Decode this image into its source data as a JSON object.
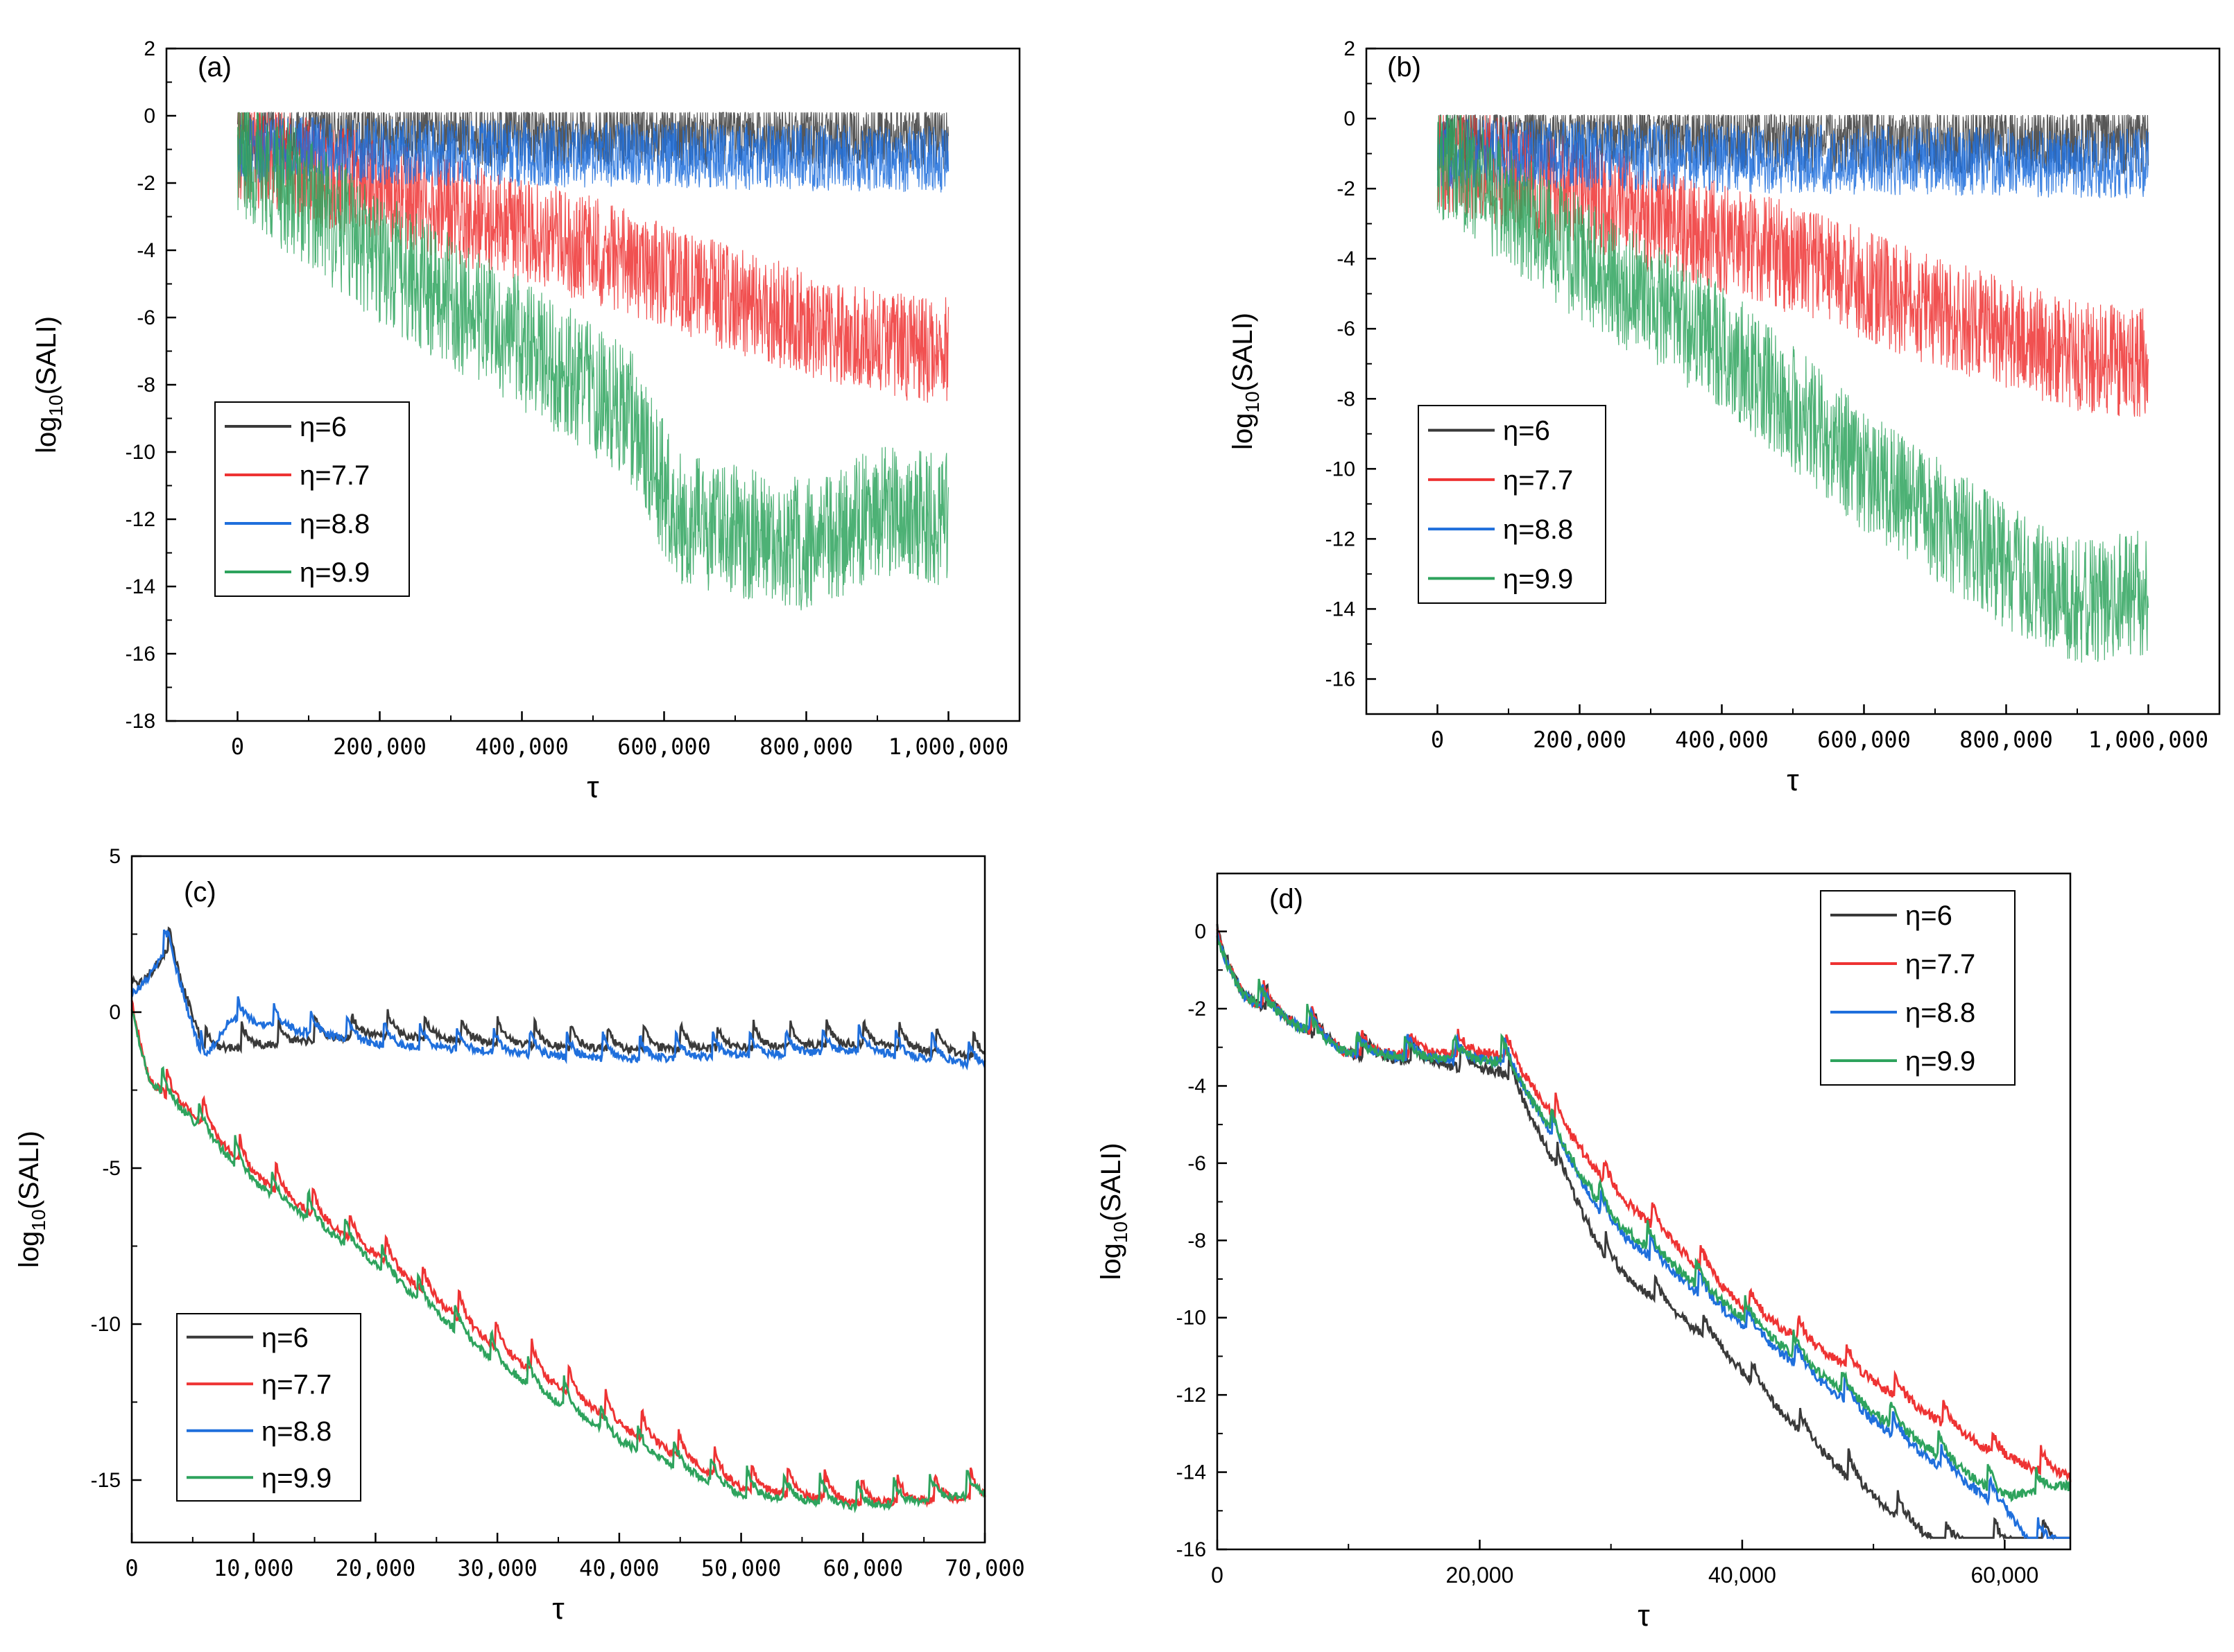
{
  "colors": {
    "eta6": "#3a3a3a",
    "eta7_7": "#ee3333",
    "eta8_8": "#1f6fdc",
    "eta9_9": "#2ea35d",
    "axis": "#000000"
  },
  "chart_data": [
    {
      "id": "a",
      "type": "line",
      "panel_label": "(a)",
      "xlabel": "τ",
      "ylabel_main": "log",
      "ylabel_sub": "10",
      "ylabel_tail": "(SALI)",
      "xlim": [
        -100000,
        1100000
      ],
      "ylim": [
        -18,
        2
      ],
      "xticks": [
        0,
        200000,
        400000,
        600000,
        800000,
        1000000
      ],
      "xtick_labels": [
        "0",
        "200,000",
        "400,000",
        "600,000",
        "800,000",
        "1,000,000"
      ],
      "yticks": [
        2,
        0,
        -2,
        -4,
        -6,
        -8,
        -10,
        -12,
        -14,
        -16,
        -18
      ],
      "ytick_labels": [
        "2",
        "0",
        "-2",
        "-4",
        "-6",
        "-8",
        "-10",
        "-12",
        "-14",
        "-16",
        "-18"
      ],
      "legend_position": "lower-left",
      "legend": [
        "η=6",
        "η=7.7",
        "η=8.8",
        "η=9.9"
      ],
      "series": [
        {
          "name": "η=6",
          "trend": [
            [
              0,
              -0.5
            ],
            [
              1000000,
              -0.6
            ]
          ],
          "noise": 1.0
        },
        {
          "name": "η=7.7",
          "trend": [
            [
              0,
              -1.0
            ],
            [
              300000,
              -2.8
            ],
            [
              500000,
              -4.0
            ],
            [
              700000,
              -5.5
            ],
            [
              900000,
              -6.8
            ],
            [
              1000000,
              -7.0
            ]
          ],
          "noise": 1.6
        },
        {
          "name": "η=8.8",
          "trend": [
            [
              0,
              -1.0
            ],
            [
              1000000,
              -1.3
            ]
          ],
          "noise": 1.0
        },
        {
          "name": "η=9.9",
          "trend": [
            [
              0,
              -1.0
            ],
            [
              200000,
              -4.2
            ],
            [
              400000,
              -6.8
            ],
            [
              550000,
              -8.8
            ],
            [
              620000,
              -12.0
            ],
            [
              800000,
              -12.8
            ],
            [
              900000,
              -11.8
            ],
            [
              1000000,
              -12.0
            ]
          ],
          "noise": 2.0
        }
      ]
    },
    {
      "id": "b",
      "type": "line",
      "panel_label": "(b)",
      "xlabel": "τ",
      "ylabel_main": "log",
      "ylabel_sub": "10",
      "ylabel_tail": "(SALI)",
      "xlim": [
        -100000,
        1100000
      ],
      "ylim": [
        -17,
        2
      ],
      "xticks": [
        0,
        200000,
        400000,
        600000,
        800000,
        1000000
      ],
      "xtick_labels": [
        "0",
        "200,000",
        "400,000",
        "600,000",
        "800,000",
        "1,000,000"
      ],
      "yticks": [
        2,
        0,
        -2,
        -4,
        -6,
        -8,
        -10,
        -12,
        -14,
        -16
      ],
      "ytick_labels": [
        "2",
        "0",
        "-2",
        "-4",
        "-6",
        "-8",
        "-10",
        "-12",
        "-14",
        "-16"
      ],
      "legend_position": "lower-left",
      "legend": [
        "η=6",
        "η=7.7",
        "η=8.8",
        "η=9.9"
      ],
      "series": [
        {
          "name": "η=6",
          "trend": [
            [
              0,
              -0.5
            ],
            [
              1000000,
              -0.6
            ]
          ],
          "noise": 1.0
        },
        {
          "name": "η=7.7",
          "trend": [
            [
              0,
              -1.0
            ],
            [
              300000,
              -2.8
            ],
            [
              500000,
              -4.0
            ],
            [
              700000,
              -5.5
            ],
            [
              900000,
              -6.8
            ],
            [
              1000000,
              -7.0
            ]
          ],
          "noise": 1.6
        },
        {
          "name": "η=8.8",
          "trend": [
            [
              0,
              -1.0
            ],
            [
              1000000,
              -1.3
            ]
          ],
          "noise": 1.0
        },
        {
          "name": "η=9.9",
          "trend": [
            [
              0,
              -1.0
            ],
            [
              200000,
              -4.0
            ],
            [
              400000,
              -6.5
            ],
            [
              600000,
              -10.0
            ],
            [
              800000,
              -12.8
            ],
            [
              900000,
              -13.8
            ],
            [
              1000000,
              -13.5
            ]
          ],
          "noise": 1.8
        }
      ]
    },
    {
      "id": "c",
      "type": "line",
      "panel_label": "(c)",
      "xlabel": "τ",
      "ylabel_main": "log",
      "ylabel_sub": "10",
      "ylabel_tail": "(SALI)",
      "xlim": [
        0,
        70000
      ],
      "ylim": [
        -17,
        5
      ],
      "xticks": [
        0,
        10000,
        20000,
        30000,
        40000,
        50000,
        60000,
        70000
      ],
      "xtick_labels": [
        "0",
        "10,000",
        "20,000",
        "30,000",
        "40,000",
        "50,000",
        "60,000",
        "70,000"
      ],
      "yticks": [
        5,
        0,
        -5,
        -10,
        -15
      ],
      "ytick_labels": [
        "5",
        "0",
        "-5",
        "-10",
        "-15"
      ],
      "legend_position": "lower-left",
      "legend": [
        "η=6",
        "η=7.7",
        "η=8.8",
        "η=9.9"
      ],
      "series": [
        {
          "name": "η=6",
          "trend": [
            [
              0,
              0.5
            ],
            [
              3000,
              2.3
            ],
            [
              6000,
              -1.0
            ],
            [
              20000,
              -0.5
            ],
            [
              40000,
              -1.0
            ],
            [
              60000,
              -0.8
            ],
            [
              70000,
              -1.2
            ]
          ],
          "noise": 0.8
        },
        {
          "name": "η=7.7",
          "trend": [
            [
              0,
              0
            ],
            [
              1500,
              -2.0
            ],
            [
              5000,
              -3.0
            ],
            [
              10000,
              -5.0
            ],
            [
              20000,
              -7.5
            ],
            [
              30000,
              -10.5
            ],
            [
              40000,
              -13.0
            ],
            [
              50000,
              -15.0
            ],
            [
              60000,
              -15.5
            ],
            [
              70000,
              -15.3
            ]
          ],
          "noise": 0.9
        },
        {
          "name": "η=8.8",
          "trend": [
            [
              0,
              0.5
            ],
            [
              3000,
              2.3
            ],
            [
              6000,
              -1.5
            ],
            [
              8000,
              0.0
            ],
            [
              20000,
              -0.8
            ],
            [
              40000,
              -1.3
            ],
            [
              60000,
              -1.0
            ],
            [
              70000,
              -1.5
            ]
          ],
          "noise": 0.8
        },
        {
          "name": "η=9.9",
          "trend": [
            [
              0,
              0
            ],
            [
              1500,
              -2.0
            ],
            [
              5000,
              -3.2
            ],
            [
              10000,
              -5.2
            ],
            [
              20000,
              -7.8
            ],
            [
              30000,
              -11.0
            ],
            [
              40000,
              -13.5
            ],
            [
              50000,
              -15.2
            ],
            [
              60000,
              -15.6
            ],
            [
              70000,
              -15.2
            ]
          ],
          "noise": 0.9
        }
      ]
    },
    {
      "id": "d",
      "type": "line",
      "panel_label": "(d)",
      "xlabel": "τ",
      "ylabel_main": "log",
      "ylabel_sub": "10",
      "ylabel_tail": "(SALI)",
      "xlim": [
        0,
        65000
      ],
      "ylim": [
        -16,
        1.5
      ],
      "xticks": [
        0,
        20000,
        40000,
        60000
      ],
      "xtick_labels": [
        "0",
        "20,000",
        "40,000",
        "60,000"
      ],
      "yticks": [
        0,
        -2,
        -4,
        -6,
        -8,
        -10,
        -12,
        -14,
        -16
      ],
      "ytick_labels": [
        "0",
        "-2",
        "-4",
        "-6",
        "-8",
        "-10",
        "-12",
        "-14",
        "-16"
      ],
      "legend_position": "top-right",
      "legend": [
        "η=6",
        "η=7.7",
        "η=8.8",
        "η=9.9"
      ],
      "series": [
        {
          "name": "η=6",
          "trend": [
            [
              0,
              -0.3
            ],
            [
              2000,
              -1.5
            ],
            [
              10000,
              -3.0
            ],
            [
              22000,
              -3.5
            ],
            [
              30000,
              -8.5
            ],
            [
              38000,
              -10.5
            ],
            [
              45000,
              -13.0
            ],
            [
              50000,
              -14.5
            ],
            [
              55000,
              -15.7
            ],
            [
              65000,
              -15.7
            ]
          ],
          "noise": 0.6
        },
        {
          "name": "η=7.7",
          "trend": [
            [
              0,
              -0.3
            ],
            [
              2000,
              -1.5
            ],
            [
              10000,
              -3.0
            ],
            [
              22000,
              -3.0
            ],
            [
              30000,
              -6.5
            ],
            [
              40000,
              -9.5
            ],
            [
              50000,
              -11.5
            ],
            [
              60000,
              -13.5
            ],
            [
              65000,
              -14.0
            ]
          ],
          "noise": 0.6
        },
        {
          "name": "η=8.8",
          "trend": [
            [
              0,
              -0.3
            ],
            [
              2000,
              -1.5
            ],
            [
              10000,
              -3.0
            ],
            [
              22000,
              -3.2
            ],
            [
              30000,
              -7.5
            ],
            [
              40000,
              -10.0
            ],
            [
              50000,
              -12.5
            ],
            [
              60000,
              -14.8
            ],
            [
              62000,
              -15.7
            ],
            [
              65000,
              -15.7
            ]
          ],
          "noise": 0.6
        },
        {
          "name": "η=9.9",
          "trend": [
            [
              0,
              -0.3
            ],
            [
              2000,
              -1.5
            ],
            [
              10000,
              -3.0
            ],
            [
              22000,
              -3.2
            ],
            [
              30000,
              -7.3
            ],
            [
              40000,
              -9.8
            ],
            [
              50000,
              -12.3
            ],
            [
              60000,
              -14.5
            ],
            [
              65000,
              -14.2
            ]
          ],
          "noise": 0.6
        }
      ]
    }
  ]
}
